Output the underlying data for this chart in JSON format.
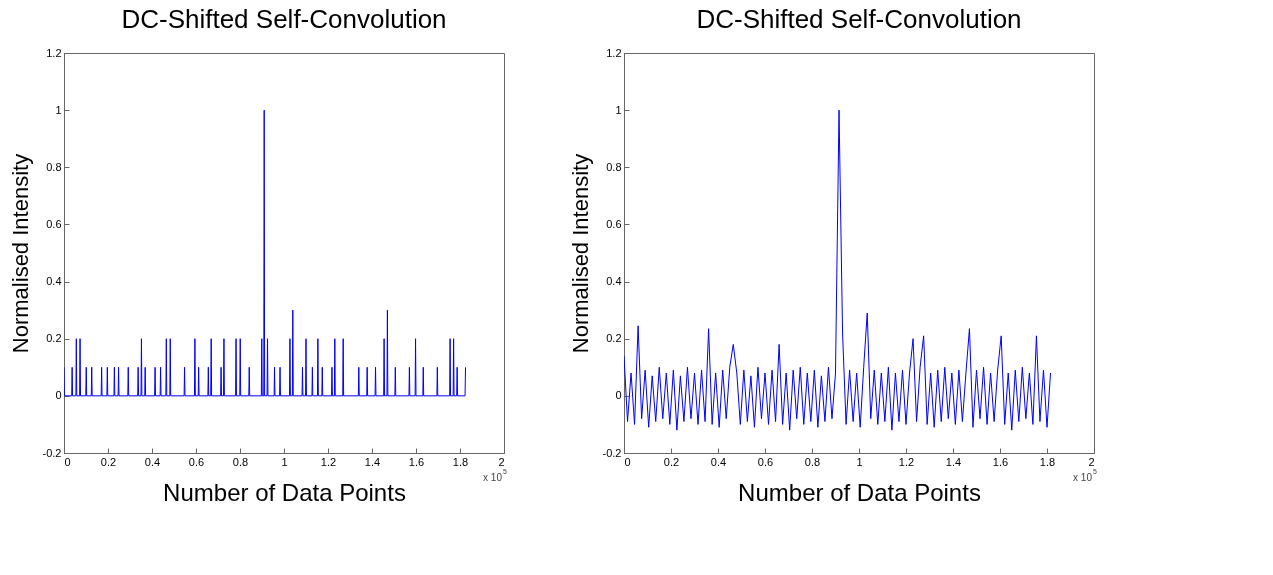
{
  "chart_data": [
    {
      "type": "line",
      "title": "DC-Shifted Self-Convolution",
      "xlabel": "Number of Data Points",
      "ylabel": "Normalised Intensity",
      "xlim": [
        0,
        2
      ],
      "xticks": [
        0,
        0.2,
        0.4,
        0.6,
        0.8,
        1,
        1.2,
        1.4,
        1.6,
        1.8,
        2
      ],
      "ylim": [
        -0.2,
        1.2
      ],
      "yticks": [
        -0.2,
        0,
        0.2,
        0.4,
        0.6,
        0.8,
        1,
        1.2
      ],
      "grid": false,
      "annotations": [
        "x 10$^{5}$"
      ],
      "series": [
        {
          "color": "#0000ff",
          "x": [
            0,
            0.002,
            0.035,
            0.037,
            0.039,
            0.054,
            0.056,
            0.058,
            0.071,
            0.073,
            0.075,
            0.099,
            0.101,
            0.103,
            0.124,
            0.126,
            0.128,
            0.169,
            0.171,
            0.173,
            0.195,
            0.197,
            0.199,
            0.227,
            0.229,
            0.231,
            0.246,
            0.248,
            0.25,
            0.29,
            0.292,
            0.294,
            0.335,
            0.337,
            0.339,
            0.35,
            0.352,
            0.354,
            0.367,
            0.369,
            0.371,
            0.412,
            0.414,
            0.416,
            0.437,
            0.439,
            0.441,
            0.463,
            0.465,
            0.467,
            0.481,
            0.483,
            0.485,
            0.546,
            0.548,
            0.55,
            0.593,
            0.595,
            0.597,
            0.61,
            0.612,
            0.614,
            0.654,
            0.656,
            0.658,
            0.667,
            0.669,
            0.671,
            0.712,
            0.714,
            0.716,
            0.725,
            0.727,
            0.729,
            0.78,
            0.782,
            0.784,
            0.799,
            0.801,
            0.803,
            0.84,
            0.842,
            0.844,
            0.897,
            0.899,
            0.901,
            0.908,
            0.91,
            0.912,
            0.923,
            0.925,
            0.927,
            0.955,
            0.957,
            0.959,
            0.98,
            0.982,
            0.984,
            1.025,
            1.027,
            1.029,
            1.038,
            1.04,
            1.042,
            1.082,
            1.084,
            1.086,
            1.098,
            1.1,
            1.102,
            1.127,
            1.129,
            1.131,
            1.152,
            1.154,
            1.156,
            1.172,
            1.174,
            1.176,
            1.216,
            1.218,
            1.22,
            1.229,
            1.231,
            1.233,
            1.267,
            1.269,
            1.271,
            1.338,
            1.34,
            1.342,
            1.376,
            1.378,
            1.38,
            1.414,
            1.416,
            1.418,
            1.453,
            1.455,
            1.457,
            1.468,
            1.47,
            1.472,
            1.504,
            1.506,
            1.508,
            1.568,
            1.57,
            1.572,
            1.596,
            1.598,
            1.6,
            1.631,
            1.633,
            1.635,
            1.695,
            1.697,
            1.699,
            1.753,
            1.755,
            1.757,
            1.769,
            1.771,
            1.773,
            1.785,
            1.787,
            1.789,
            1.823,
            1.825
          ],
          "values": [
            0.1,
            0,
            0,
            0.1,
            0,
            0,
            0.2,
            0,
            0,
            0.2,
            0,
            0,
            0.1,
            0,
            0,
            0.1,
            0,
            0,
            0.1,
            0,
            0,
            0.1,
            0,
            0,
            0.1,
            0,
            0,
            0.1,
            0,
            0,
            0.1,
            0,
            0,
            0.1,
            0,
            0,
            0.2,
            0,
            0,
            0.1,
            0,
            0,
            0.1,
            0,
            0,
            0.1,
            0,
            0,
            0.2,
            0,
            0,
            0.2,
            0,
            0,
            0.1,
            0,
            0,
            0.2,
            0,
            0,
            0.1,
            0,
            0,
            0.1,
            0,
            0,
            0.2,
            0,
            0,
            0.1,
            0,
            0,
            0.2,
            0,
            0,
            0.2,
            0,
            0,
            0.2,
            0,
            0,
            0.1,
            0,
            0,
            0.2,
            0,
            0,
            1,
            0,
            0,
            0.2,
            0,
            0,
            0.1,
            0,
            0,
            0.1,
            0,
            0,
            0.2,
            0,
            0,
            0.3,
            0,
            0,
            0.1,
            0,
            0,
            0.2,
            0,
            0,
            0.1,
            0,
            0,
            0.2,
            0,
            0,
            0.1,
            0,
            0,
            0.1,
            0,
            0,
            0.2,
            0,
            0,
            0.2,
            0,
            0,
            0.1,
            0,
            0,
            0.1,
            0,
            0,
            0.1,
            0,
            0,
            0.2,
            0,
            0,
            0.3,
            0,
            0,
            0.1,
            0,
            0,
            0.1,
            0,
            0,
            0.2,
            0,
            0,
            0.1,
            0,
            0,
            0.1,
            0,
            0,
            0.2,
            0,
            0,
            0.2,
            0,
            0,
            0.1,
            0,
            0,
            0.1
          ]
        }
      ]
    },
    {
      "type": "line",
      "title": "DC-Shifted Self-Convolution",
      "xlabel": "Number of Data Points",
      "ylabel": "Normalised Intensity",
      "xlim": [
        0,
        2
      ],
      "xticks": [
        0,
        0.2,
        0.4,
        0.6,
        0.8,
        1,
        1.2,
        1.4,
        1.6,
        1.8,
        2
      ],
      "ylim": [
        -0.2,
        1.2
      ],
      "yticks": [
        -0.2,
        0,
        0.2,
        0.4,
        0.6,
        0.8,
        1,
        1.2
      ],
      "grid": false,
      "annotations": [
        "x 10$^{5}$"
      ],
      "series": [
        {
          "color": "#0000ff",
          "x": [
            0,
            0.015,
            0.03,
            0.045,
            0.06,
            0.075,
            0.09,
            0.105,
            0.12,
            0.135,
            0.15,
            0.165,
            0.18,
            0.195,
            0.21,
            0.225,
            0.24,
            0.255,
            0.27,
            0.285,
            0.3,
            0.315,
            0.33,
            0.345,
            0.36,
            0.375,
            0.39,
            0.405,
            0.42,
            0.435,
            0.45,
            0.465,
            0.48,
            0.495,
            0.51,
            0.525,
            0.54,
            0.555,
            0.57,
            0.585,
            0.6,
            0.615,
            0.63,
            0.645,
            0.66,
            0.675,
            0.69,
            0.705,
            0.72,
            0.735,
            0.75,
            0.765,
            0.78,
            0.795,
            0.81,
            0.825,
            0.84,
            0.855,
            0.87,
            0.885,
            0.9,
            0.915,
            0.93,
            0.945,
            0.96,
            0.975,
            0.99,
            1.005,
            1.02,
            1.035,
            1.05,
            1.065,
            1.08,
            1.095,
            1.11,
            1.125,
            1.14,
            1.155,
            1.17,
            1.185,
            1.2,
            1.215,
            1.23,
            1.245,
            1.26,
            1.275,
            1.29,
            1.305,
            1.32,
            1.335,
            1.35,
            1.365,
            1.38,
            1.395,
            1.41,
            1.425,
            1.44,
            1.455,
            1.47,
            1.485,
            1.5,
            1.515,
            1.53,
            1.545,
            1.56,
            1.575,
            1.59,
            1.605,
            1.62,
            1.635,
            1.65,
            1.665,
            1.68,
            1.695,
            1.71,
            1.725,
            1.74,
            1.755,
            1.77,
            1.785,
            1.8,
            1.815
          ],
          "values": [
            0.14,
            -0.09,
            0.08,
            -0.1,
            0.245,
            -0.08,
            0.09,
            -0.11,
            0.07,
            -0.09,
            0.1,
            -0.08,
            0.08,
            -0.1,
            0.09,
            -0.12,
            0.07,
            -0.09,
            0.1,
            -0.08,
            0.08,
            -0.1,
            0.09,
            -0.09,
            0.235,
            -0.1,
            0.08,
            -0.11,
            0.09,
            -0.08,
            0.1,
            0.18,
            0.08,
            -0.1,
            0.09,
            -0.09,
            0.07,
            -0.11,
            0.1,
            -0.08,
            0.08,
            -0.1,
            0.09,
            -0.09,
            0.18,
            -0.1,
            0.08,
            -0.12,
            0.09,
            -0.08,
            0.1,
            -0.1,
            0.08,
            -0.09,
            0.09,
            -0.11,
            0.07,
            -0.09,
            0.1,
            -0.08,
            0.08,
            1,
            0.22,
            -0.1,
            0.09,
            -0.09,
            0.08,
            -0.11,
            0.1,
            0.29,
            -0.08,
            0.09,
            -0.1,
            0.08,
            -0.09,
            0.1,
            -0.12,
            0.08,
            -0.09,
            0.09,
            -0.1,
            0.08,
            0.2,
            -0.09,
            0.1,
            0.21,
            -0.1,
            0.08,
            -0.11,
            0.09,
            -0.09,
            0.1,
            -0.08,
            0.08,
            -0.1,
            0.09,
            -0.09,
            0.08,
            0.235,
            -0.11,
            0.09,
            -0.08,
            0.1,
            -0.1,
            0.08,
            -0.09,
            0.09,
            0.21,
            -0.1,
            0.08,
            -0.12,
            0.09,
            -0.09,
            0.1,
            -0.08,
            0.08,
            -0.1,
            0.21,
            -0.09,
            0.09,
            -0.11,
            0.08
          ]
        }
      ]
    }
  ]
}
